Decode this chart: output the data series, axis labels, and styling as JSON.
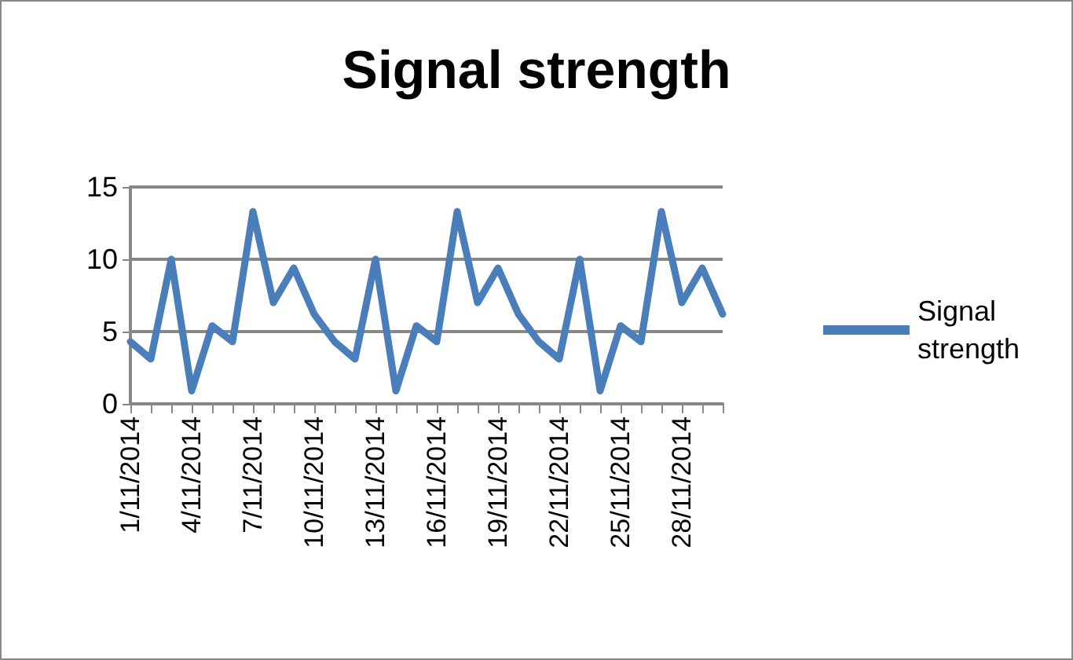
{
  "chart_data": {
    "type": "line",
    "title": "Signal strength",
    "categories": [
      "1/11/2014",
      null,
      null,
      "4/11/2014",
      null,
      null,
      "7/11/2014",
      null,
      null,
      "10/11/2014",
      null,
      null,
      "13/11/2014",
      null,
      null,
      "16/11/2014",
      null,
      null,
      "19/11/2014",
      null,
      null,
      "22/11/2014",
      null,
      null,
      "25/11/2014",
      null,
      null,
      "28/11/2014",
      null,
      null
    ],
    "series": [
      {
        "name": "Signal strength",
        "color": "#4a7ebb",
        "values": [
          4.3,
          3.1,
          10,
          0.9,
          5.4,
          4.3,
          13.3,
          7,
          9.4,
          6.2,
          4.3,
          3.1,
          10,
          0.9,
          5.4,
          4.3,
          13.3,
          7,
          9.4,
          6.2,
          4.3,
          3.1,
          10,
          0.9,
          5.4,
          4.3,
          13.3,
          7,
          9.4,
          6.2
        ]
      }
    ],
    "ylim": [
      0,
      15
    ],
    "yticks": [
      0,
      5,
      10,
      15
    ],
    "grid": "y",
    "legend": "right",
    "marker": "none",
    "line_style": "solid"
  }
}
